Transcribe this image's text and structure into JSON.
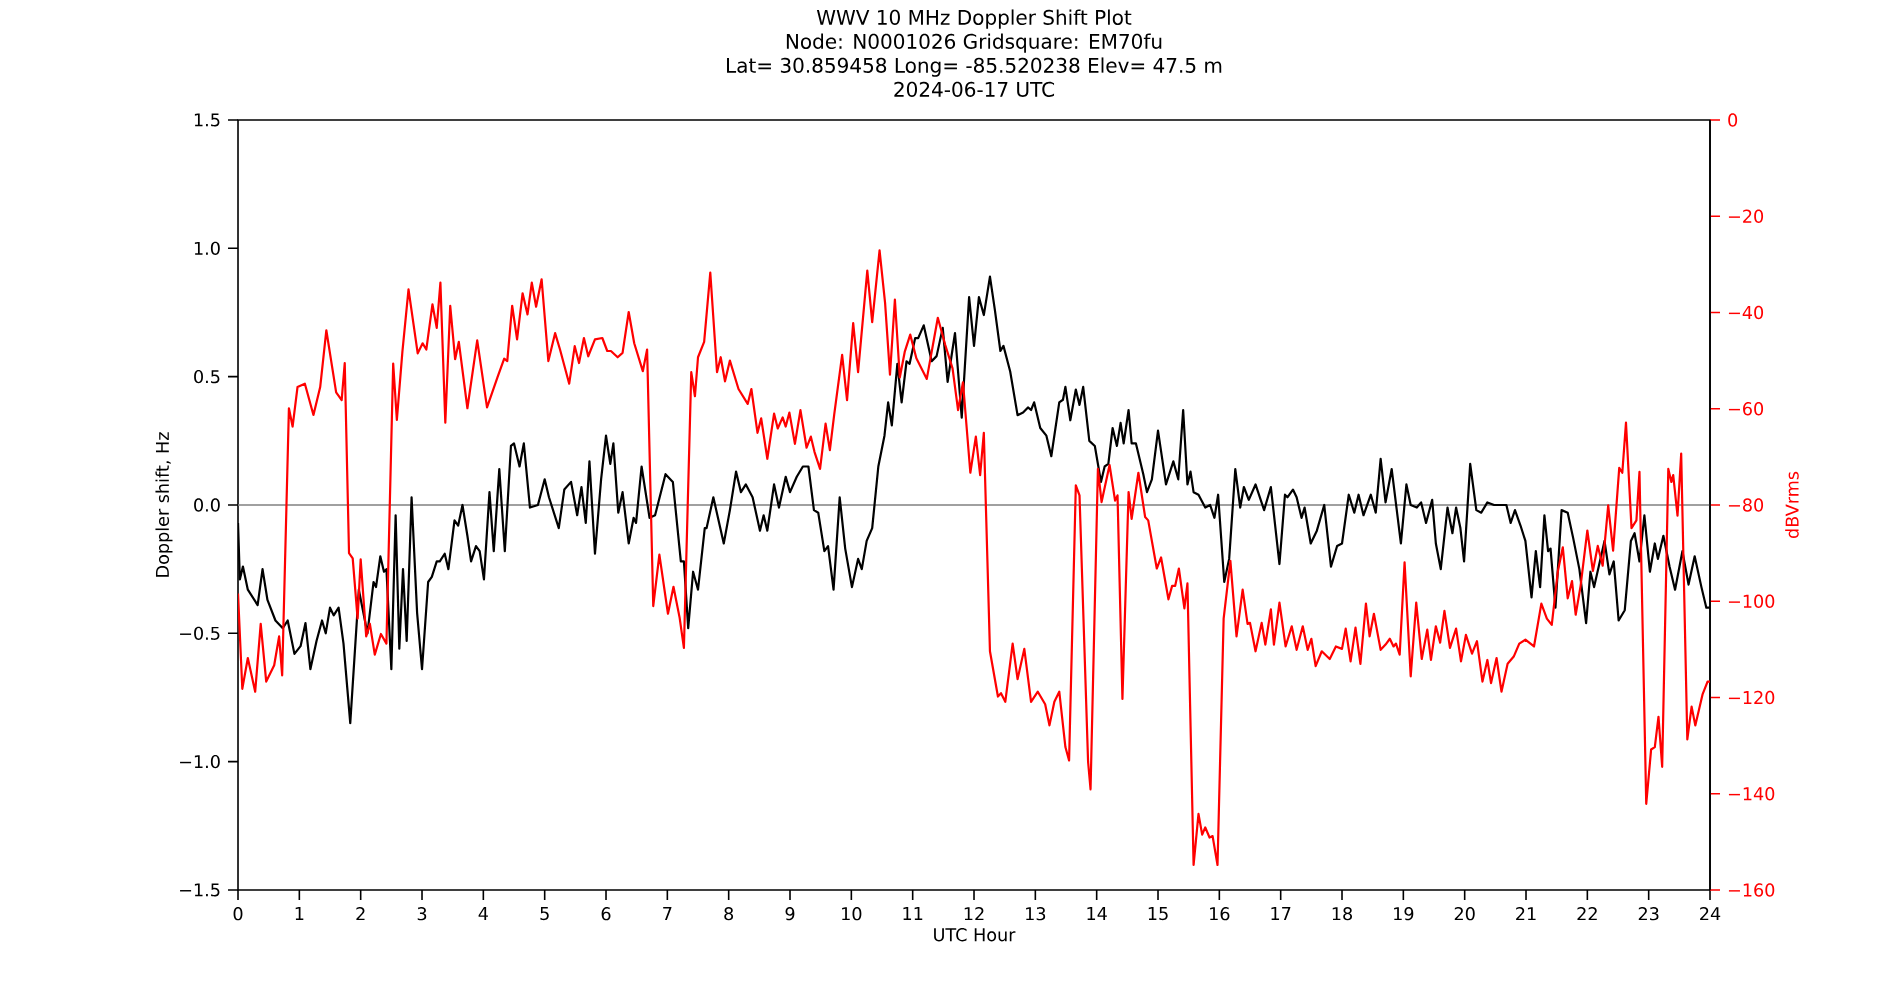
{
  "chart_data": {
    "type": "line",
    "title": "WWV 10 MHz Doppler Shift Plot",
    "subtitle": "Node:  N0001026     Gridsquare:  EM70fu",
    "annotations": [
      "Lat= 30.859458    Long= -85.520238    Elev= 47.5 m",
      "2024-06-17  UTC"
    ],
    "xlabel": "UTC Hour",
    "ylabel": "Doppler shift, Hz",
    "y2label": "dBVrms",
    "xlim": [
      0,
      24
    ],
    "xticks": [
      0,
      1,
      2,
      3,
      4,
      5,
      6,
      7,
      8,
      9,
      10,
      11,
      12,
      13,
      14,
      15,
      16,
      17,
      18,
      19,
      20,
      21,
      22,
      23,
      24
    ],
    "ylim": [
      -1.5,
      1.5
    ],
    "yticks": [
      {
        "value": -1.5,
        "label": "−1.5"
      },
      {
        "value": -1,
        "label": "−1.0"
      },
      {
        "value": -0.5,
        "label": "−0.5"
      },
      {
        "value": 0,
        "label": "0.0"
      },
      {
        "value": 0.5,
        "label": "0.5"
      },
      {
        "value": 1,
        "label": "1.0"
      },
      {
        "value": 1.5,
        "label": "1.5"
      }
    ],
    "y2lim": [
      -160,
      0
    ],
    "y2ticks": [
      {
        "value": -160,
        "label": "−160"
      },
      {
        "value": -140,
        "label": "−140"
      },
      {
        "value": -120,
        "label": "−120"
      },
      {
        "value": -100,
        "label": "−100"
      },
      {
        "value": -80,
        "label": "−80"
      },
      {
        "value": -60,
        "label": "−60"
      },
      {
        "value": -40,
        "label": "−40"
      },
      {
        "value": -20,
        "label": "−20"
      },
      0
    ],
    "ref_lines": [
      {
        "axis": "y",
        "value": 0,
        "color": "#808080"
      }
    ],
    "grid": false,
    "marker": "none",
    "line_style": "solid",
    "series": [
      {
        "color": "#000000",
        "axis": "y",
        "x": [
          0,
          0.03,
          0.08,
          0.16,
          0.32,
          0.4,
          0.48,
          0.61,
          0.73,
          0.81,
          0.92,
          1.02,
          1.1,
          1.18,
          1.28,
          1.37,
          1.43,
          1.5,
          1.56,
          1.64,
          1.72,
          1.83,
          1.97,
          2.11,
          2.21,
          2.25,
          2.32,
          2.38,
          2.42,
          2.5,
          2.57,
          2.63,
          2.69,
          2.75,
          2.83,
          2.92,
          3.0,
          3.1,
          3.16,
          3.24,
          3.29,
          3.37,
          3.43,
          3.53,
          3.59,
          3.66,
          3.74,
          3.8,
          3.88,
          3.94,
          4.01,
          4.1,
          4.17,
          4.26,
          4.35,
          4.45,
          4.5,
          4.59,
          4.66,
          4.76,
          4.89,
          5.0,
          5.07,
          5.23,
          5.32,
          5.43,
          5.53,
          5.6,
          5.67,
          5.73,
          5.82,
          5.92,
          6.0,
          6.07,
          6.12,
          6.2,
          6.27,
          6.37,
          6.45,
          6.49,
          6.58,
          6.71,
          6.8,
          6.97,
          7.09,
          7.22,
          7.27,
          7.34,
          7.42,
          7.5,
          7.61,
          7.64,
          7.75,
          7.92,
          8.02,
          8.12,
          8.2,
          8.28,
          8.39,
          8.51,
          8.57,
          8.63,
          8.74,
          8.82,
          8.93,
          9.0,
          9.11,
          9.21,
          9.3,
          9.39,
          9.46,
          9.56,
          9.62,
          9.71,
          9.81,
          9.9,
          10.01,
          10.11,
          10.17,
          10.25,
          10.34,
          10.44,
          10.54,
          10.6,
          10.66,
          10.75,
          10.82,
          10.9,
          10.95,
          11.04,
          11.09,
          11.18,
          11.31,
          11.39,
          11.49,
          11.57,
          11.69,
          11.8,
          11.92,
          12.0,
          12.08,
          12.16,
          12.26,
          12.34,
          12.43,
          12.48,
          12.59,
          12.71,
          12.8,
          12.88,
          12.93,
          12.98,
          13.08,
          13.18,
          13.26,
          13.39,
          13.45,
          13.49,
          13.57,
          13.66,
          13.72,
          13.78,
          13.88,
          13.97,
          14.07,
          14.13,
          14.19,
          14.26,
          14.33,
          14.39,
          14.44,
          14.52,
          14.57,
          14.64,
          14.76,
          14.82,
          14.9,
          15.0,
          15.13,
          15.25,
          15.33,
          15.41,
          15.48,
          15.53,
          15.58,
          15.66,
          15.77,
          15.85,
          15.92,
          15.98,
          16.08,
          16.16,
          16.26,
          16.34,
          16.4,
          16.48,
          16.59,
          16.73,
          16.84,
          16.98,
          17.07,
          17.11,
          17.2,
          17.26,
          17.34,
          17.39,
          17.49,
          17.59,
          17.71,
          17.82,
          17.92,
          18.0,
          18.11,
          18.2,
          18.27,
          18.35,
          18.47,
          18.55,
          18.63,
          18.71,
          18.81,
          18.96,
          19.05,
          19.12,
          19.22,
          19.29,
          19.37,
          19.47,
          19.53,
          19.61,
          19.72,
          19.8,
          19.86,
          19.93,
          19.99,
          20.09,
          20.19,
          20.27,
          20.37,
          20.48,
          20.68,
          20.75,
          20.82,
          20.91,
          20.99,
          21.09,
          21.16,
          21.23,
          21.3,
          21.36,
          21.4,
          21.48,
          21.58,
          21.68,
          21.77,
          21.87,
          21.98,
          22.05,
          22.11,
          22.28,
          22.36,
          22.43,
          22.51,
          22.61,
          22.71,
          22.77,
          22.85,
          22.93,
          23.02,
          23.1,
          23.15,
          23.24,
          23.34,
          23.43,
          23.55,
          23.65,
          23.75,
          23.86,
          23.94,
          24.0
        ],
        "values": [
          -0.07,
          -0.29,
          -0.24,
          -0.33,
          -0.39,
          -0.25,
          -0.37,
          -0.45,
          -0.48,
          -0.45,
          -0.58,
          -0.55,
          -0.46,
          -0.64,
          -0.53,
          -0.45,
          -0.5,
          -0.4,
          -0.43,
          -0.4,
          -0.54,
          -0.85,
          -0.33,
          -0.5,
          -0.3,
          -0.32,
          -0.2,
          -0.26,
          -0.25,
          -0.64,
          -0.04,
          -0.56,
          -0.25,
          -0.53,
          0.03,
          -0.42,
          -0.64,
          -0.3,
          -0.28,
          -0.22,
          -0.22,
          -0.19,
          -0.25,
          -0.06,
          -0.08,
          0.0,
          -0.12,
          -0.22,
          -0.16,
          -0.18,
          -0.29,
          0.05,
          -0.18,
          0.14,
          -0.18,
          0.23,
          0.24,
          0.15,
          0.24,
          -0.01,
          0.0,
          0.1,
          0.03,
          -0.09,
          0.06,
          0.09,
          -0.04,
          0.07,
          -0.07,
          0.17,
          -0.19,
          0.1,
          0.27,
          0.16,
          0.24,
          -0.03,
          0.05,
          -0.15,
          -0.05,
          -0.07,
          0.15,
          -0.05,
          -0.04,
          0.12,
          0.09,
          -0.22,
          -0.22,
          -0.48,
          -0.26,
          -0.33,
          -0.09,
          -0.09,
          0.03,
          -0.15,
          -0.02,
          0.13,
          0.05,
          0.08,
          0.03,
          -0.1,
          -0.04,
          -0.1,
          0.08,
          -0.01,
          0.11,
          0.05,
          0.11,
          0.15,
          0.15,
          -0.02,
          -0.03,
          -0.18,
          -0.16,
          -0.33,
          0.03,
          -0.17,
          -0.32,
          -0.21,
          -0.25,
          -0.14,
          -0.09,
          0.15,
          0.27,
          0.4,
          0.31,
          0.55,
          0.4,
          0.56,
          0.55,
          0.65,
          0.65,
          0.7,
          0.56,
          0.58,
          0.69,
          0.48,
          0.67,
          0.34,
          0.81,
          0.62,
          0.81,
          0.74,
          0.89,
          0.76,
          0.6,
          0.62,
          0.52,
          0.35,
          0.36,
          0.38,
          0.37,
          0.4,
          0.3,
          0.27,
          0.19,
          0.4,
          0.41,
          0.46,
          0.33,
          0.45,
          0.39,
          0.46,
          0.25,
          0.23,
          0.09,
          0.15,
          0.16,
          0.3,
          0.23,
          0.32,
          0.24,
          0.37,
          0.24,
          0.24,
          0.12,
          0.05,
          0.1,
          0.29,
          0.08,
          0.17,
          0.1,
          0.37,
          0.08,
          0.13,
          0.05,
          0.04,
          -0.01,
          0.0,
          -0.05,
          0.04,
          -0.3,
          -0.21,
          0.14,
          -0.01,
          0.07,
          0.02,
          0.08,
          -0.02,
          0.07,
          -0.23,
          0.04,
          0.03,
          0.06,
          0.03,
          -0.05,
          -0.01,
          -0.15,
          -0.1,
          0.0,
          -0.24,
          -0.16,
          -0.15,
          0.04,
          -0.03,
          0.04,
          -0.04,
          0.04,
          -0.03,
          0.18,
          0.01,
          0.14,
          -0.15,
          0.08,
          0.0,
          -0.01,
          0.01,
          -0.07,
          0.02,
          -0.15,
          -0.25,
          -0.01,
          -0.11,
          -0.01,
          -0.09,
          -0.22,
          0.16,
          -0.02,
          -0.03,
          0.01,
          0.0,
          0.0,
          -0.07,
          -0.02,
          -0.08,
          -0.14,
          -0.36,
          -0.18,
          -0.32,
          -0.04,
          -0.18,
          -0.17,
          -0.4,
          -0.02,
          -0.03,
          -0.13,
          -0.25,
          -0.46,
          -0.26,
          -0.32,
          -0.14,
          -0.27,
          -0.22,
          -0.45,
          -0.41,
          -0.14,
          -0.11,
          -0.22,
          -0.04,
          -0.26,
          -0.15,
          -0.21,
          -0.12,
          -0.24,
          -0.33,
          -0.18,
          -0.31,
          -0.2,
          -0.32,
          -0.4,
          -0.4
        ]
      },
      {
        "color": "#ff0000",
        "axis": "y2",
        "x": [
          0,
          0.07,
          0.16,
          0.28,
          0.37,
          0.46,
          0.59,
          0.67,
          0.72,
          0.83,
          0.89,
          0.97,
          1.09,
          1.23,
          1.34,
          1.44,
          1.6,
          1.69,
          1.74,
          1.81,
          1.87,
          1.95,
          2.0,
          2.09,
          2.15,
          2.23,
          2.33,
          2.42,
          2.53,
          2.59,
          2.68,
          2.78,
          2.93,
          3.01,
          3.07,
          3.17,
          3.24,
          3.3,
          3.38,
          3.46,
          3.54,
          3.6,
          3.74,
          3.9,
          4.06,
          4.23,
          4.34,
          4.39,
          4.47,
          4.55,
          4.64,
          4.72,
          4.79,
          4.86,
          4.95,
          5.06,
          5.17,
          5.25,
          5.4,
          5.49,
          5.56,
          5.64,
          5.71,
          5.82,
          5.94,
          6.02,
          6.08,
          6.19,
          6.27,
          6.37,
          6.46,
          6.6,
          6.67,
          6.77,
          6.87,
          7.01,
          7.1,
          7.2,
          7.27,
          7.39,
          7.45,
          7.5,
          7.6,
          7.7,
          7.81,
          7.87,
          7.94,
          8.02,
          8.16,
          8.31,
          8.37,
          8.47,
          8.53,
          8.63,
          8.74,
          8.8,
          8.88,
          8.93,
          8.99,
          9.08,
          9.17,
          9.27,
          9.34,
          9.4,
          9.49,
          9.58,
          9.65,
          9.72,
          9.85,
          9.93,
          10.03,
          10.11,
          10.26,
          10.34,
          10.46,
          10.55,
          10.63,
          10.71,
          10.79,
          10.87,
          10.96,
          11.06,
          11.23,
          11.41,
          11.53,
          11.65,
          11.74,
          11.82,
          11.94,
          12.03,
          12.1,
          12.16,
          12.26,
          12.39,
          12.44,
          12.51,
          12.63,
          12.71,
          12.82,
          12.93,
          13.04,
          13.16,
          13.23,
          13.31,
          13.39,
          13.49,
          13.55,
          13.66,
          13.72,
          13.86,
          13.9,
          14.02,
          14.08,
          14.21,
          14.3,
          14.34,
          14.42,
          14.52,
          14.57,
          14.68,
          14.79,
          14.84,
          14.98,
          15.05,
          15.17,
          15.23,
          15.28,
          15.34,
          15.43,
          15.48,
          15.58,
          15.66,
          15.72,
          15.77,
          15.84,
          15.89,
          15.97,
          16.07,
          16.18,
          16.28,
          16.38,
          16.46,
          16.5,
          16.59,
          16.69,
          16.75,
          16.84,
          16.89,
          16.98,
          17.08,
          17.18,
          17.26,
          17.36,
          17.44,
          17.5,
          17.57,
          17.67,
          17.8,
          17.9,
          18.0,
          18.06,
          18.14,
          18.22,
          18.3,
          18.39,
          18.45,
          18.52,
          18.63,
          18.71,
          18.78,
          18.84,
          18.88,
          18.94,
          19.02,
          19.12,
          19.21,
          19.3,
          19.39,
          19.45,
          19.53,
          19.6,
          19.67,
          19.76,
          19.86,
          19.94,
          20.02,
          20.12,
          20.2,
          20.29,
          20.37,
          20.43,
          20.52,
          20.6,
          20.7,
          20.8,
          20.89,
          20.99,
          21.13,
          21.25,
          21.34,
          21.42,
          21.52,
          21.6,
          21.68,
          21.75,
          21.81,
          21.89,
          22.0,
          22.09,
          22.17,
          22.25,
          22.34,
          22.42,
          22.52,
          22.57,
          22.63,
          22.72,
          22.8,
          22.85,
          22.96,
          23.04,
          23.1,
          23.16,
          23.22,
          23.32,
          23.37,
          23.4,
          23.47,
          23.53,
          23.63,
          23.7,
          23.76,
          23.88,
          23.96,
          24.0
        ],
        "values": [
          -98.4,
          -118.2,
          -111.8,
          -118.8,
          -104.7,
          -116.7,
          -113.3,
          -107.3,
          -115.4,
          -59.9,
          -63.7,
          -55.5,
          -54.8,
          -61.3,
          -55.5,
          -43.7,
          -56.6,
          -58.2,
          -50.5,
          -90.0,
          -91.1,
          -103.6,
          -91.3,
          -107.3,
          -104.7,
          -111.1,
          -106.8,
          -108.8,
          -50.6,
          -62.3,
          -48.2,
          -35.2,
          -48.5,
          -46.4,
          -47.7,
          -38.3,
          -43.2,
          -33.8,
          -62.9,
          -38.6,
          -49.7,
          -46.1,
          -59.9,
          -45.8,
          -59.7,
          -53.5,
          -49.6,
          -50.1,
          -38.6,
          -45.6,
          -36.0,
          -40.4,
          -33.8,
          -38.8,
          -33.1,
          -50.1,
          -44.3,
          -47.7,
          -54.8,
          -47.0,
          -50.5,
          -45.3,
          -49.1,
          -45.6,
          -45.3,
          -48.0,
          -48.0,
          -49.3,
          -48.4,
          -39.9,
          -46.4,
          -52.2,
          -47.7,
          -101.0,
          -90.3,
          -102.6,
          -97.0,
          -103.4,
          -109.7,
          -52.4,
          -57.4,
          -49.3,
          -46.1,
          -31.7,
          -52.4,
          -49.3,
          -54.3,
          -50.0,
          -55.9,
          -59.0,
          -55.9,
          -65.0,
          -62.0,
          -70.4,
          -61.0,
          -64.1,
          -61.8,
          -63.7,
          -60.8,
          -67.3,
          -60.3,
          -68.1,
          -65.8,
          -69.0,
          -72.5,
          -63.1,
          -68.6,
          -61.3,
          -48.8,
          -58.2,
          -42.2,
          -52.4,
          -31.3,
          -42.0,
          -27.1,
          -38.0,
          -52.9,
          -37.3,
          -53.5,
          -48.2,
          -44.6,
          -49.5,
          -53.8,
          -41.1,
          -46.7,
          -51.6,
          -60.3,
          -54.5,
          -73.3,
          -65.8,
          -73.8,
          -65.0,
          -110.4,
          -119.8,
          -119.1,
          -120.9,
          -108.8,
          -116.2,
          -109.9,
          -120.9,
          -118.8,
          -121.4,
          -125.8,
          -120.9,
          -118.8,
          -130.3,
          -133.1,
          -75.9,
          -78.0,
          -133.4,
          -139.1,
          -72.5,
          -79.4,
          -71.7,
          -79.1,
          -78.0,
          -120.3,
          -77.3,
          -82.9,
          -73.3,
          -82.5,
          -83.2,
          -93.2,
          -90.9,
          -99.6,
          -96.8,
          -96.8,
          -93.2,
          -101.5,
          -96.3,
          -154.8,
          -144.2,
          -148.5,
          -147.0,
          -149.1,
          -148.8,
          -154.8,
          -103.6,
          -91.6,
          -107.3,
          -97.6,
          -104.7,
          -104.5,
          -110.4,
          -104.5,
          -109.0,
          -101.7,
          -109.0,
          -100.3,
          -109.4,
          -105.2,
          -110.1,
          -105.2,
          -110.1,
          -107.8,
          -113.5,
          -110.4,
          -112.0,
          -109.4,
          -109.9,
          -105.7,
          -112.5,
          -105.5,
          -113.0,
          -100.5,
          -107.3,
          -102.6,
          -110.1,
          -109.0,
          -107.8,
          -109.4,
          -108.8,
          -111.1,
          -91.9,
          -115.6,
          -100.3,
          -112.0,
          -105.9,
          -112.2,
          -105.2,
          -108.6,
          -102.0,
          -109.7,
          -105.7,
          -112.5,
          -107.0,
          -110.9,
          -108.3,
          -116.7,
          -112.2,
          -117.0,
          -111.8,
          -118.8,
          -113.0,
          -111.5,
          -108.8,
          -108.0,
          -109.4,
          -100.5,
          -103.6,
          -104.9,
          -93.7,
          -88.8,
          -99.4,
          -95.8,
          -102.8,
          -96.8,
          -85.3,
          -93.7,
          -88.5,
          -92.6,
          -80.1,
          -89.5,
          -72.3,
          -73.3,
          -62.9,
          -84.8,
          -83.2,
          -73.1,
          -142.1,
          -130.8,
          -130.3,
          -124.0,
          -134.4,
          -72.5,
          -75.2,
          -73.8,
          -82.2,
          -69.3,
          -128.7,
          -121.9,
          -125.8,
          -119.3,
          -116.7,
          -116.7
        ]
      }
    ]
  }
}
